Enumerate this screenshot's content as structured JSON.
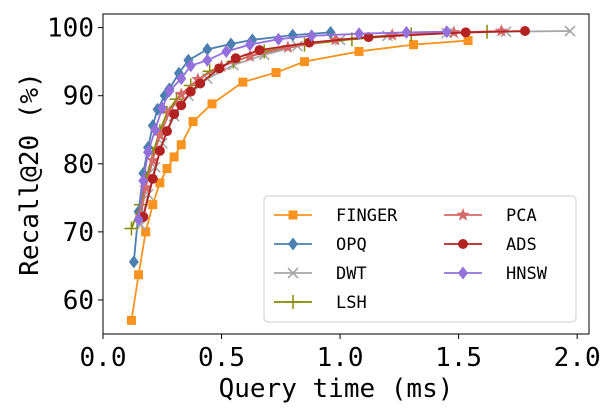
{
  "chart_data": {
    "type": "line",
    "xlabel": "Query time (ms)",
    "ylabel": "Recall@20 (%)",
    "xlim": [
      0.0,
      2.05
    ],
    "ylim": [
      55,
      102
    ],
    "xticks": [
      0.0,
      0.5,
      1.0,
      1.5,
      2.0
    ],
    "xtick_labels": [
      "0.0",
      "0.5",
      "1.0",
      "1.5",
      "2.0"
    ],
    "yticks": [
      60,
      70,
      80,
      90,
      100
    ],
    "ytick_labels": [
      "60",
      "70",
      "80",
      "90",
      "100"
    ],
    "grid": false,
    "legend_position": "lower-right",
    "legend_columns": 2,
    "series": [
      {
        "name": "FINGER",
        "color": "#f7931e",
        "marker": "square",
        "x": [
          0.12,
          0.15,
          0.18,
          0.21,
          0.24,
          0.27,
          0.3,
          0.33,
          0.38,
          0.46,
          0.59,
          0.73,
          0.85,
          1.08,
          1.31,
          1.54
        ],
        "y": [
          57.0,
          63.7,
          70.0,
          74.0,
          77.2,
          79.3,
          81.0,
          82.8,
          86.2,
          88.8,
          92.0,
          93.4,
          95.0,
          96.5,
          97.5,
          98.1
        ]
      },
      {
        "name": "OPQ",
        "color": "#4a7fb0",
        "marker": "diamond",
        "x": [
          0.13,
          0.15,
          0.17,
          0.19,
          0.21,
          0.23,
          0.26,
          0.28,
          0.32,
          0.36,
          0.44,
          0.54,
          0.63,
          0.8,
          0.96
        ],
        "y": [
          65.6,
          73.0,
          78.6,
          82.4,
          85.6,
          88.0,
          90.0,
          91.0,
          93.3,
          95.2,
          96.8,
          97.6,
          98.2,
          98.9,
          99.3
        ]
      },
      {
        "name": "DWT",
        "color": "#a6a6a6",
        "marker": "x",
        "x": [
          0.16,
          0.19,
          0.22,
          0.25,
          0.3,
          0.36,
          0.44,
          0.55,
          0.68,
          0.82,
          1.0,
          1.2,
          1.45,
          1.7,
          1.97
        ],
        "y": [
          71.0,
          75.5,
          79.5,
          83.0,
          87.0,
          90.0,
          92.5,
          94.5,
          96.0,
          97.3,
          98.2,
          98.8,
          99.2,
          99.4,
          99.5
        ]
      },
      {
        "name": "LSH",
        "color": "#888800",
        "marker": "plus",
        "x": [
          0.12,
          0.16,
          0.18,
          0.21,
          0.24,
          0.27,
          0.31,
          0.37,
          0.45,
          0.55,
          0.68,
          0.85,
          1.05,
          1.3,
          1.62
        ],
        "y": [
          70.5,
          74.0,
          77.5,
          81.5,
          84.8,
          87.5,
          89.5,
          91.5,
          93.6,
          95.0,
          96.5,
          97.5,
          98.3,
          99.0,
          99.4
        ]
      },
      {
        "name": "PCA",
        "color": "#d46a6a",
        "marker": "star",
        "x": [
          0.16,
          0.18,
          0.21,
          0.24,
          0.28,
          0.33,
          0.4,
          0.5,
          0.62,
          0.78,
          0.98,
          1.22,
          1.48,
          1.68
        ],
        "y": [
          72.3,
          76.5,
          80.5,
          84.2,
          87.5,
          90.2,
          92.4,
          94.3,
          95.8,
          97.1,
          98.2,
          98.9,
          99.3,
          99.5
        ]
      },
      {
        "name": "ADS",
        "color": "#b22222",
        "marker": "circle",
        "x": [
          0.17,
          0.21,
          0.24,
          0.27,
          0.3,
          0.33,
          0.37,
          0.41,
          0.49,
          0.56,
          0.66,
          0.87,
          1.12,
          1.53,
          1.78
        ],
        "y": [
          72.2,
          77.8,
          81.9,
          84.8,
          87.3,
          88.6,
          90.6,
          91.8,
          94.0,
          95.5,
          96.7,
          97.8,
          98.6,
          99.3,
          99.5
        ]
      },
      {
        "name": "HNSW",
        "color": "#9370db",
        "marker": "diamond",
        "x": [
          0.15,
          0.17,
          0.19,
          0.22,
          0.25,
          0.28,
          0.33,
          0.37,
          0.44,
          0.52,
          0.62,
          0.74,
          0.88,
          1.08,
          1.28,
          1.45
        ],
        "y": [
          71.8,
          77.5,
          81.7,
          85.0,
          88.2,
          90.7,
          92.5,
          94.4,
          95.2,
          96.5,
          97.5,
          98.3,
          98.8,
          99.1,
          99.3,
          99.4
        ]
      }
    ]
  }
}
